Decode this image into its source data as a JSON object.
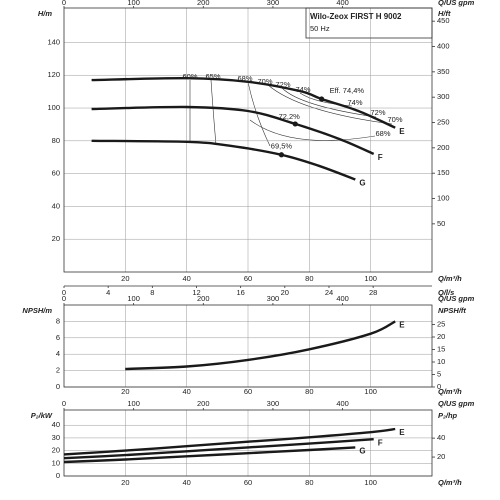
{
  "chart_data": [
    {
      "type": "line",
      "title": "Wilo-Zeox FIRST H 9002",
      "subtitle": "50 Hz",
      "xlabel": "Q/m³/h",
      "xlim": [
        0,
        120
      ],
      "xticks": [
        20,
        40,
        60,
        80,
        100
      ],
      "x2label": "Q/US gpm",
      "x2lim": [
        0,
        528.4
      ],
      "x2ticks": [
        0,
        100,
        200,
        300,
        400
      ],
      "x3label": "Q/l/s",
      "x3lim": [
        0,
        33.33
      ],
      "x3ticks": [
        0,
        4,
        8,
        12,
        16,
        20,
        24,
        28
      ],
      "ylabel": "H/m",
      "ylim": [
        0,
        161
      ],
      "yticks": [
        20,
        40,
        60,
        80,
        100,
        120,
        140
      ],
      "y2label": "H/ft",
      "y2lim": [
        -45,
        476
      ],
      "y2ticks": [
        50,
        100,
        150,
        200,
        250,
        300,
        350,
        400,
        450
      ],
      "grid": true,
      "series": [
        {
          "name": "E",
          "color": "#1a1a1a",
          "x": [
            9,
            40,
            60,
            77,
            84,
            96,
            108
          ],
          "values": [
            117,
            118.2,
            116,
            110.3,
            105.5,
            98.2,
            88
          ]
        },
        {
          "name": "F",
          "color": "#1a1a1a",
          "x": [
            9,
            40,
            60,
            75.4,
            90,
            101
          ],
          "values": [
            99.4,
            100.6,
            98.2,
            90.3,
            81,
            72
          ]
        },
        {
          "name": "G",
          "color": "#1a1a1a",
          "x": [
            9,
            40,
            54,
            70.9,
            83,
            95
          ],
          "values": [
            80,
            79.4,
            77,
            71.5,
            64.8,
            56.4
          ]
        }
      ],
      "markers": {
        "x": [
          84,
          75.4,
          70.9
        ],
        "y": [
          105.5,
          90.3,
          71.5
        ],
        "labels": [
          "Eff. 74,4%",
          "72,2%",
          "69,5%"
        ]
      },
      "annotations": [
        "60%",
        "65%",
        "68%",
        "70%",
        "72%",
        "74%",
        "74%",
        "72%",
        "70%",
        "68%"
      ]
    },
    {
      "type": "line",
      "xlabel": "Q/m³/h",
      "xlim": [
        0,
        120
      ],
      "xticks": [
        20,
        40,
        60,
        80,
        100
      ],
      "x2label": "Q/US gpm",
      "x2lim": [
        0,
        528.4
      ],
      "x2ticks": [
        0,
        100,
        200,
        300,
        400
      ],
      "ylabel": "NPSH/m",
      "ylim": [
        0,
        10
      ],
      "yticks": [
        0,
        2,
        4,
        6,
        8
      ],
      "y2label": "NPSH/ft",
      "y2lim": [
        0,
        32.8
      ],
      "y2ticks": [
        0,
        5,
        10,
        15,
        20,
        25
      ],
      "grid": true,
      "series": [
        {
          "name": "E",
          "color": "#1a1a1a",
          "x": [
            20,
            40,
            60,
            80,
            100,
            108
          ],
          "values": [
            2.2,
            2.5,
            3.3,
            4.6,
            6.5,
            8
          ]
        }
      ]
    },
    {
      "type": "line",
      "xlabel": "Q/m³/h",
      "xlim": [
        0,
        120
      ],
      "xticks": [
        20,
        40,
        60,
        80,
        100
      ],
      "x2label": "Q/US gpm",
      "x2lim": [
        0,
        528.4
      ],
      "x2ticks": [
        0,
        100,
        200,
        300,
        400
      ],
      "ylabel": "P₂/kW",
      "ylim": [
        0,
        52
      ],
      "yticks": [
        0,
        10,
        20,
        30,
        40
      ],
      "y2label": "P₂/hp",
      "y2lim": [
        0,
        69.7
      ],
      "y2ticks": [
        20,
        40
      ],
      "grid": true,
      "series": [
        {
          "name": "E",
          "color": "#1a1a1a",
          "x": [
            0,
            20,
            40,
            60,
            80,
            100,
            108
          ],
          "values": [
            17,
            20,
            23.5,
            27,
            30.5,
            34.5,
            37
          ]
        },
        {
          "name": "F",
          "color": "#1a1a1a",
          "x": [
            0,
            20,
            40,
            60,
            80,
            101
          ],
          "values": [
            14,
            16.5,
            19.5,
            22.5,
            25.5,
            29
          ]
        },
        {
          "name": "G",
          "color": "#1a1a1a",
          "x": [
            0,
            20,
            40,
            60,
            80,
            95
          ],
          "values": [
            11,
            13,
            15.5,
            18,
            20.5,
            22.5
          ]
        }
      ]
    }
  ]
}
